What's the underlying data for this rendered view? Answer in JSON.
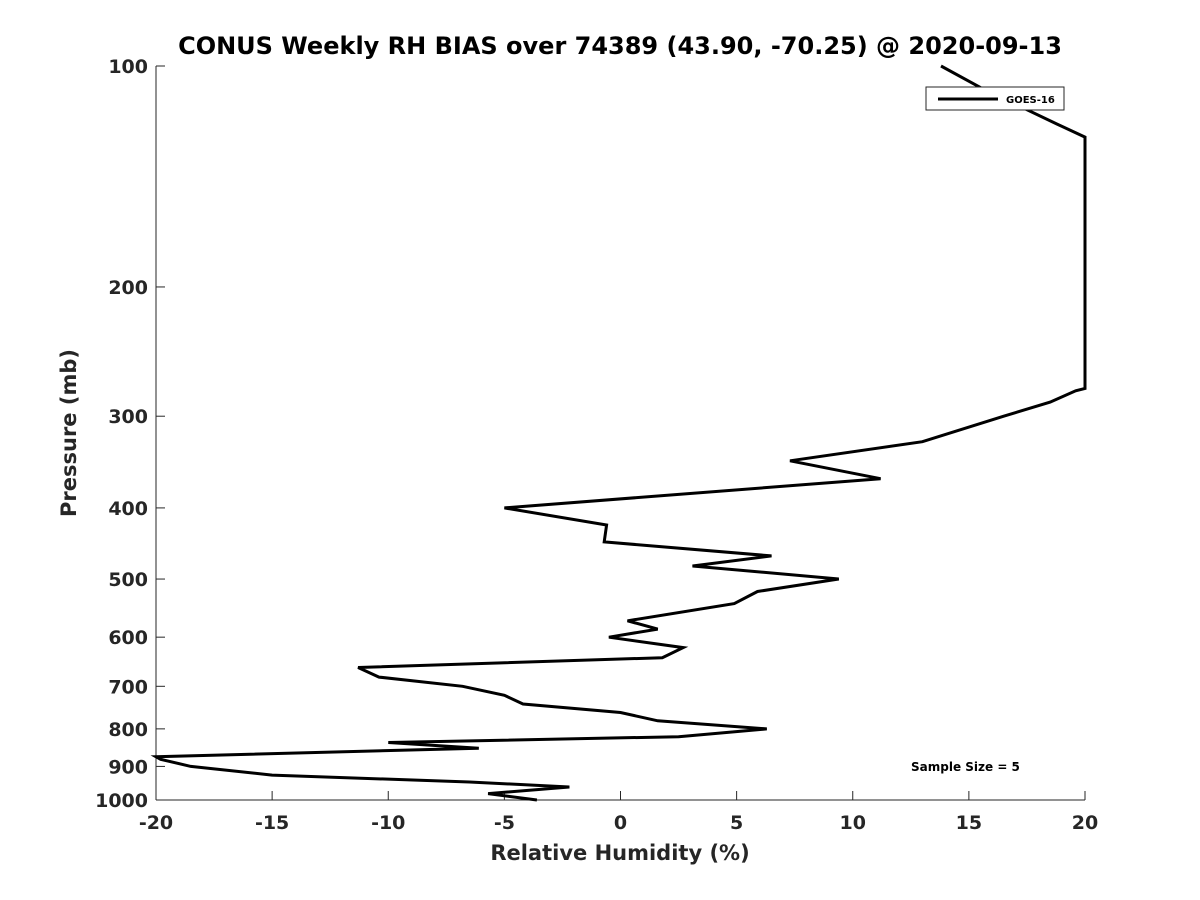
{
  "chart_data": {
    "type": "line",
    "title": "CONUS Weekly RH BIAS over 74389 (43.90, -70.25) @ 2020-09-13",
    "xlabel": "Relative Humidity (%)",
    "ylabel": "Pressure (mb)",
    "xlim": [
      -20,
      20
    ],
    "ylim": [
      100,
      1000
    ],
    "y_scale": "log",
    "y_reversed": true,
    "xticks": [
      -20,
      -15,
      -10,
      -5,
      0,
      5,
      10,
      15,
      20
    ],
    "yticks": [
      100,
      200,
      300,
      400,
      500,
      600,
      700,
      800,
      900,
      1000
    ],
    "legend_position": "top-right",
    "grid": false,
    "line_color": "#000000",
    "series": [
      {
        "name": "GOES-16",
        "points": [
          {
            "x": 13.8,
            "y": 100
          },
          {
            "x": 15.5,
            "y": 107
          },
          {
            "x": 18.8,
            "y": 120
          },
          {
            "x": 20.0,
            "y": 125
          },
          {
            "x": 20.0,
            "y": 275
          },
          {
            "x": 19.6,
            "y": 277
          },
          {
            "x": 18.5,
            "y": 287
          },
          {
            "x": 16.5,
            "y": 300
          },
          {
            "x": 13.0,
            "y": 325
          },
          {
            "x": 7.3,
            "y": 345
          },
          {
            "x": 11.2,
            "y": 365
          },
          {
            "x": -5.0,
            "y": 400
          },
          {
            "x": -0.6,
            "y": 422
          },
          {
            "x": -0.7,
            "y": 445
          },
          {
            "x": 6.5,
            "y": 465
          },
          {
            "x": 3.1,
            "y": 480
          },
          {
            "x": 9.4,
            "y": 500
          },
          {
            "x": 5.9,
            "y": 520
          },
          {
            "x": 4.9,
            "y": 540
          },
          {
            "x": 0.3,
            "y": 570
          },
          {
            "x": 1.6,
            "y": 585
          },
          {
            "x": -0.5,
            "y": 600
          },
          {
            "x": 2.7,
            "y": 620
          },
          {
            "x": 1.8,
            "y": 640
          },
          {
            "x": -11.3,
            "y": 660
          },
          {
            "x": -10.4,
            "y": 680
          },
          {
            "x": -6.8,
            "y": 700
          },
          {
            "x": -5.0,
            "y": 720
          },
          {
            "x": -4.2,
            "y": 740
          },
          {
            "x": 0.0,
            "y": 760
          },
          {
            "x": 1.6,
            "y": 780
          },
          {
            "x": 6.3,
            "y": 800
          },
          {
            "x": 2.5,
            "y": 820
          },
          {
            "x": -10.0,
            "y": 835
          },
          {
            "x": -6.1,
            "y": 850
          },
          {
            "x": -20.0,
            "y": 873
          },
          {
            "x": -19.8,
            "y": 880
          },
          {
            "x": -18.5,
            "y": 900
          },
          {
            "x": -15.0,
            "y": 925
          },
          {
            "x": -6.5,
            "y": 945
          },
          {
            "x": -2.2,
            "y": 960
          },
          {
            "x": -5.7,
            "y": 980
          },
          {
            "x": -3.6,
            "y": 1000
          }
        ]
      }
    ],
    "annotations": [
      {
        "text": "Sample Size = 5"
      }
    ]
  }
}
